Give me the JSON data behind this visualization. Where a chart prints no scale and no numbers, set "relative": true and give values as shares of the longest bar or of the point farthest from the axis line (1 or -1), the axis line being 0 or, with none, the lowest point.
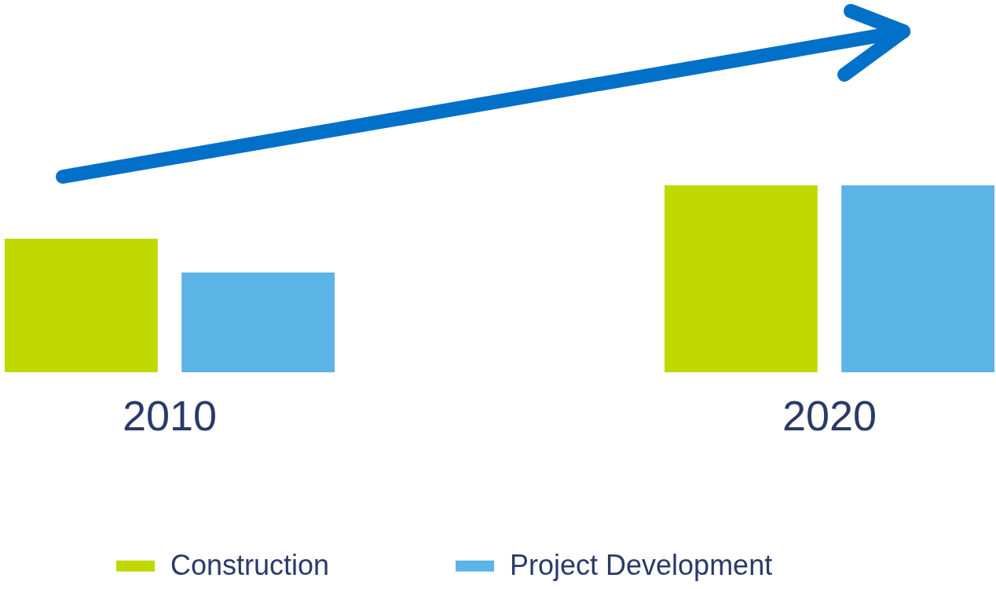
{
  "chart_data": {
    "type": "bar",
    "relative": true,
    "categories": [
      "2010",
      "2020"
    ],
    "series": [
      {
        "name": "Construction",
        "color": "#bfd900",
        "values": [
          0.714,
          1
        ]
      },
      {
        "name": "Project Development",
        "color": "#5cb3e6",
        "values": [
          0.534,
          1
        ]
      }
    ],
    "legend": "bottom"
  }
}
